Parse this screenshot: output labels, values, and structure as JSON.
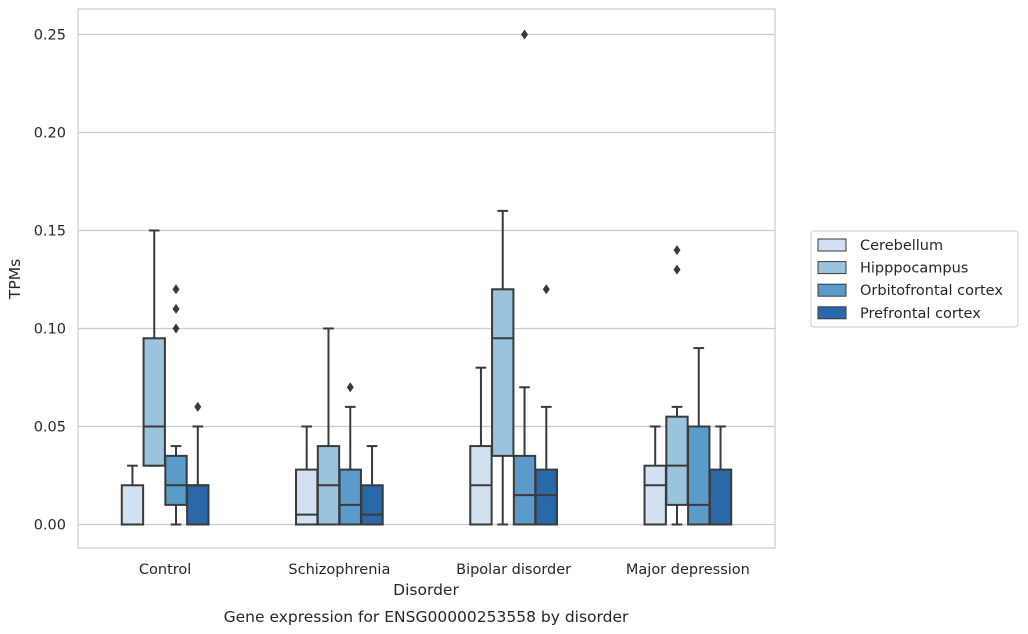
{
  "chart_data": {
    "type": "box",
    "ylabel": "TPMs",
    "xlabel": "Disorder",
    "caption": "Gene expression for ENSG00000253558 by disorder",
    "ylim": [
      -0.012,
      0.263
    ],
    "yticks": [
      0.0,
      0.05,
      0.1,
      0.15,
      0.2,
      0.25
    ],
    "ytick_labels": [
      "0.00",
      "0.05",
      "0.10",
      "0.15",
      "0.20",
      "0.25"
    ],
    "grid": "horizontal",
    "legend_position": "right",
    "categories": [
      "Control",
      "Schizophrenia",
      "Bipolar disorder",
      "Major depression"
    ],
    "series": [
      {
        "name": "Cerebellum",
        "color": "#d1e1f1",
        "boxes": [
          {
            "whislo": 0.0,
            "q1": 0.0,
            "med": 0.0,
            "q3": 0.02,
            "whishi": 0.03,
            "fliers": []
          },
          {
            "whislo": 0.0,
            "q1": 0.0,
            "med": 0.005,
            "q3": 0.028,
            "whishi": 0.05,
            "fliers": []
          },
          {
            "whislo": 0.0,
            "q1": 0.0,
            "med": 0.02,
            "q3": 0.04,
            "whishi": 0.08,
            "fliers": []
          },
          {
            "whislo": 0.0,
            "q1": 0.0,
            "med": 0.02,
            "q3": 0.03,
            "whishi": 0.05,
            "fliers": []
          }
        ]
      },
      {
        "name": "Hipppocampus",
        "color": "#9ac3dd",
        "boxes": [
          {
            "whislo": 0.03,
            "q1": 0.03,
            "med": 0.05,
            "q3": 0.095,
            "whishi": 0.15,
            "fliers": []
          },
          {
            "whislo": 0.0,
            "q1": 0.0,
            "med": 0.02,
            "q3": 0.04,
            "whishi": 0.1,
            "fliers": []
          },
          {
            "whislo": 0.0,
            "q1": 0.035,
            "med": 0.095,
            "q3": 0.12,
            "whishi": 0.16,
            "fliers": []
          },
          {
            "whislo": 0.0,
            "q1": 0.01,
            "med": 0.03,
            "q3": 0.055,
            "whishi": 0.06,
            "fliers": [
              0.13,
              0.14
            ]
          }
        ]
      },
      {
        "name": "Orbitofrontal cortex",
        "color": "#5a9bc9",
        "boxes": [
          {
            "whislo": 0.0,
            "q1": 0.01,
            "med": 0.02,
            "q3": 0.035,
            "whishi": 0.04,
            "fliers": [
              0.1,
              0.11,
              0.12
            ]
          },
          {
            "whislo": 0.0,
            "q1": 0.0,
            "med": 0.01,
            "q3": 0.028,
            "whishi": 0.06,
            "fliers": [
              0.07
            ]
          },
          {
            "whislo": 0.0,
            "q1": 0.0,
            "med": 0.015,
            "q3": 0.035,
            "whishi": 0.07,
            "fliers": [
              0.25
            ]
          },
          {
            "whislo": 0.0,
            "q1": 0.0,
            "med": 0.01,
            "q3": 0.05,
            "whishi": 0.09,
            "fliers": []
          }
        ]
      },
      {
        "name": "Prefrontal cortex",
        "color": "#2a69a8",
        "boxes": [
          {
            "whislo": 0.0,
            "q1": 0.0,
            "med": 0.02,
            "q3": 0.02,
            "whishi": 0.05,
            "fliers": [
              0.06
            ]
          },
          {
            "whislo": 0.0,
            "q1": 0.0,
            "med": 0.005,
            "q3": 0.02,
            "whishi": 0.04,
            "fliers": []
          },
          {
            "whislo": 0.0,
            "q1": 0.0,
            "med": 0.015,
            "q3": 0.028,
            "whishi": 0.06,
            "fliers": [
              0.12
            ]
          },
          {
            "whislo": 0.0,
            "q1": 0.0,
            "med": 0.0,
            "q3": 0.028,
            "whishi": 0.05,
            "fliers": []
          }
        ]
      }
    ]
  }
}
